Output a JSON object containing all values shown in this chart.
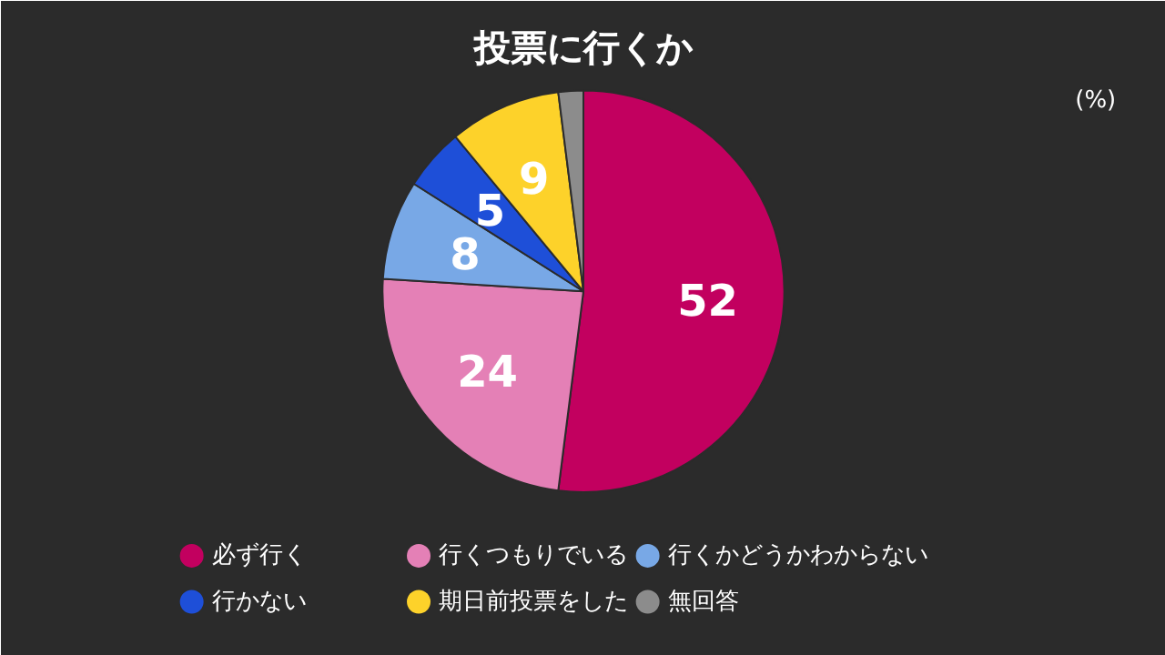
{
  "chart_data": {
    "type": "pie",
    "title": "投票に行くか",
    "categories": [
      "必ず行く",
      "行くつもりでいる",
      "行くかどうかわからない",
      "行かない",
      "期日前投票をした",
      "無回答"
    ],
    "values": [
      52,
      24,
      8,
      5,
      9,
      2
    ],
    "colors": [
      "#c2005f",
      "#e480b6",
      "#78a8e6",
      "#1e4fd8",
      "#fdd22a",
      "#8c8c8c"
    ],
    "value_labels": [
      "52",
      "24",
      "8",
      "5",
      "9",
      null
    ],
    "annotations": [
      "(%)"
    ],
    "legend": "bottom"
  }
}
